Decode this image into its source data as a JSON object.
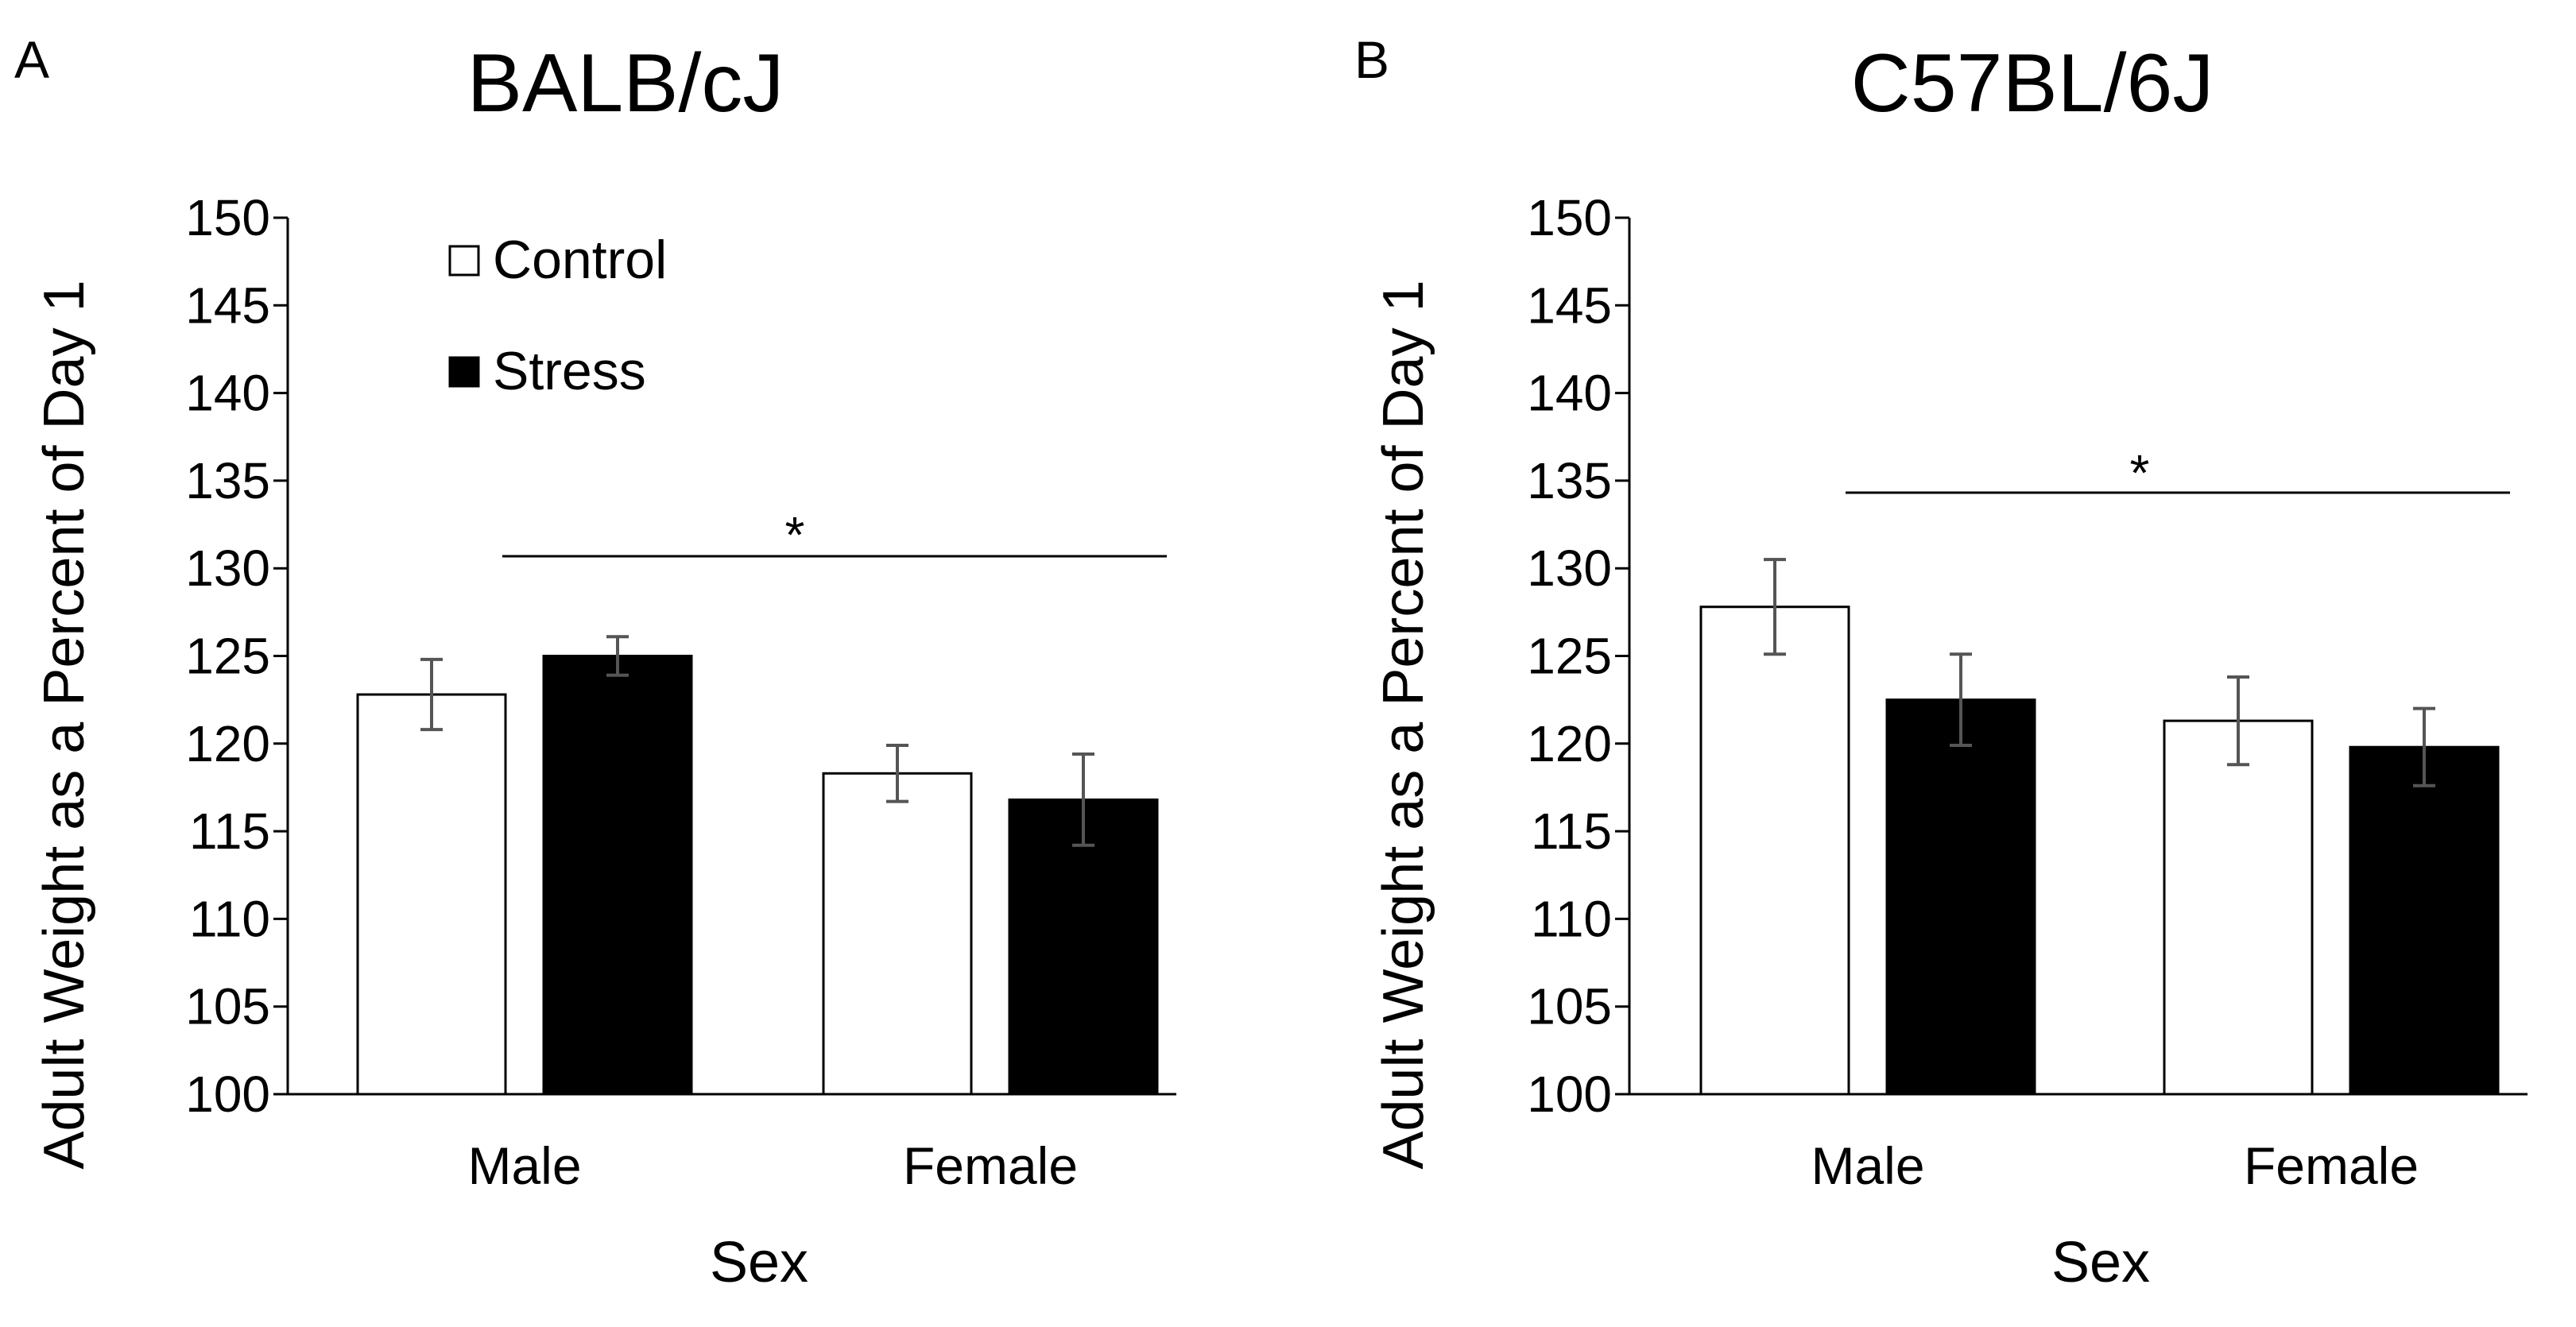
{
  "chart_data": [
    {
      "type": "bar",
      "panel_label": "A",
      "title": "BALB/cJ",
      "xlabel": "Sex",
      "ylabel": "Adult Weight as a Percent of Day 1",
      "ylim": [
        100,
        150
      ],
      "yticks": [
        100,
        105,
        110,
        115,
        120,
        125,
        130,
        135,
        140,
        145,
        150
      ],
      "grid": false,
      "legend_position": "top-left",
      "categories": [
        "Male",
        "Female"
      ],
      "series": [
        {
          "name": "Control",
          "color": "#ffffff",
          "values": [
            122.8,
            118.3
          ],
          "errors": [
            2.0,
            1.6
          ]
        },
        {
          "name": "Stress",
          "color": "#000000",
          "values": [
            125.0,
            116.8
          ],
          "errors": [
            1.1,
            2.6
          ]
        }
      ],
      "significance": {
        "label": "*",
        "y": 130.7
      }
    },
    {
      "type": "bar",
      "panel_label": "B",
      "title": "C57BL/6J",
      "xlabel": "Sex",
      "ylabel": "Adult Weight as a Percent of Day 1",
      "ylim": [
        100,
        150
      ],
      "yticks": [
        100,
        105,
        110,
        115,
        120,
        125,
        130,
        135,
        140,
        145,
        150
      ],
      "grid": false,
      "legend_position": "none",
      "categories": [
        "Male",
        "Female"
      ],
      "series": [
        {
          "name": "Control",
          "color": "#ffffff",
          "values": [
            127.8,
            121.3
          ],
          "errors": [
            2.7,
            2.5
          ]
        },
        {
          "name": "Stress",
          "color": "#000000",
          "values": [
            122.5,
            119.8
          ],
          "errors": [
            2.6,
            2.2
          ]
        }
      ],
      "significance": {
        "label": "*",
        "y": 134.5
      }
    }
  ]
}
